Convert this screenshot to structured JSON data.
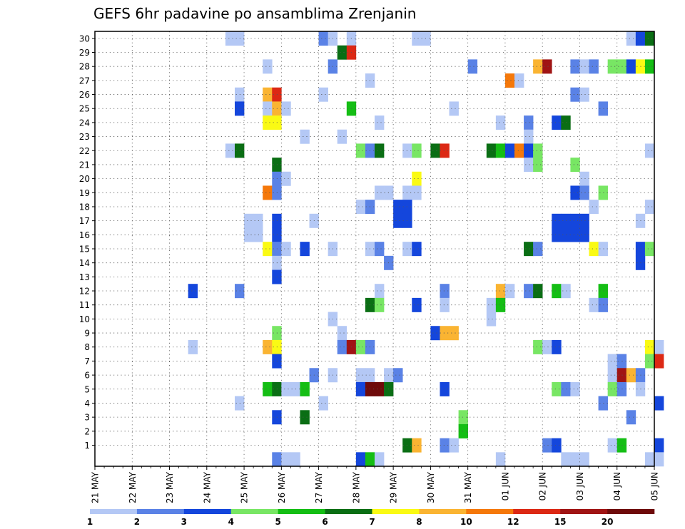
{
  "chart_data": {
    "type": "heatmap",
    "title": "GEFS 6hr padavine po ansamblima Zrenjanin",
    "xlabel": "",
    "ylabel": "",
    "x_start": "21 MAY",
    "x_end": "05 JUN",
    "x_tick_labels": [
      "21 MAY",
      "22 MAY",
      "23 MAY",
      "24 MAY",
      "25 MAY",
      "26 MAY",
      "27 MAY",
      "28 MAY",
      "29 MAY",
      "30 MAY",
      "31 MAY",
      "01 JUN",
      "02 JUN",
      "03 JUN",
      "04 JUN",
      "05 JUN"
    ],
    "y_tick_labels": [
      1,
      2,
      3,
      4,
      5,
      6,
      7,
      8,
      9,
      10,
      11,
      12,
      13,
      14,
      15,
      16,
      17,
      18,
      19,
      20,
      21,
      22,
      23,
      24,
      25,
      26,
      27,
      28,
      29,
      30
    ],
    "steps_per_day": 4,
    "grid": true,
    "colorbar": {
      "labels": [
        "1",
        "2",
        "3",
        "4",
        "5",
        "6",
        "7",
        "8",
        "10",
        "12",
        "15",
        "20"
      ],
      "colors": [
        "#b4c8f5",
        "#5a82e6",
        "#1446dc",
        "#78e664",
        "#14be14",
        "#0a6e14",
        "#fafa14",
        "#fab432",
        "#f5780a",
        "#dc2814",
        "#a01414",
        "#6e0a0a"
      ]
    },
    "cells": [
      [
        14,
        30,
        1
      ],
      [
        15,
        30,
        1
      ],
      [
        24,
        30,
        2
      ],
      [
        25,
        30,
        1
      ],
      [
        27,
        30,
        1
      ],
      [
        34,
        30,
        1
      ],
      [
        35,
        30,
        1
      ],
      [
        57,
        30,
        1
      ],
      [
        58,
        30,
        3
      ],
      [
        59,
        30,
        6
      ],
      [
        26,
        29,
        6
      ],
      [
        27,
        29,
        10
      ],
      [
        18,
        28,
        1
      ],
      [
        25,
        28,
        2
      ],
      [
        40,
        28,
        2
      ],
      [
        47,
        28,
        8
      ],
      [
        48,
        28,
        11
      ],
      [
        51,
        28,
        2
      ],
      [
        52,
        28,
        1
      ],
      [
        53,
        28,
        2
      ],
      [
        55,
        28,
        4
      ],
      [
        56,
        28,
        4
      ],
      [
        57,
        28,
        3
      ],
      [
        58,
        28,
        7
      ],
      [
        59,
        28,
        5
      ],
      [
        29,
        27,
        1
      ],
      [
        44,
        27,
        9
      ],
      [
        45,
        27,
        1
      ],
      [
        15,
        26,
        1
      ],
      [
        18,
        26,
        8
      ],
      [
        19,
        26,
        10
      ],
      [
        24,
        26,
        1
      ],
      [
        51,
        26,
        2
      ],
      [
        52,
        26,
        1
      ],
      [
        15,
        25,
        3
      ],
      [
        18,
        25,
        1
      ],
      [
        19,
        25,
        8
      ],
      [
        20,
        25,
        1
      ],
      [
        27,
        25,
        5
      ],
      [
        38,
        25,
        1
      ],
      [
        54,
        25,
        2
      ],
      [
        18,
        24,
        7
      ],
      [
        19,
        24,
        7
      ],
      [
        30,
        24,
        1
      ],
      [
        43,
        24,
        1
      ],
      [
        46,
        24,
        2
      ],
      [
        49,
        24,
        3
      ],
      [
        50,
        24,
        6
      ],
      [
        22,
        23,
        1
      ],
      [
        26,
        23,
        1
      ],
      [
        46,
        23,
        1
      ],
      [
        14,
        22,
        1
      ],
      [
        15,
        22,
        6
      ],
      [
        28,
        22,
        4
      ],
      [
        29,
        22,
        2
      ],
      [
        30,
        22,
        6
      ],
      [
        33,
        22,
        1
      ],
      [
        34,
        22,
        4
      ],
      [
        36,
        22,
        6
      ],
      [
        37,
        22,
        10
      ],
      [
        42,
        22,
        6
      ],
      [
        43,
        22,
        5
      ],
      [
        44,
        22,
        3
      ],
      [
        45,
        22,
        9
      ],
      [
        46,
        22,
        3
      ],
      [
        47,
        22,
        4
      ],
      [
        59,
        22,
        1
      ],
      [
        19,
        21,
        6
      ],
      [
        46,
        21,
        1
      ],
      [
        47,
        21,
        4
      ],
      [
        51,
        21,
        4
      ],
      [
        19,
        20,
        2
      ],
      [
        20,
        20,
        1
      ],
      [
        34,
        20,
        7
      ],
      [
        52,
        20,
        1
      ],
      [
        18,
        19,
        9
      ],
      [
        19,
        19,
        2
      ],
      [
        30,
        19,
        1
      ],
      [
        31,
        19,
        1
      ],
      [
        33,
        19,
        1
      ],
      [
        34,
        19,
        1
      ],
      [
        51,
        19,
        3
      ],
      [
        52,
        19,
        2
      ],
      [
        54,
        19,
        4
      ],
      [
        28,
        18,
        1
      ],
      [
        29,
        18,
        2
      ],
      [
        32,
        18,
        3
      ],
      [
        33,
        18,
        3
      ],
      [
        53,
        18,
        1
      ],
      [
        59,
        18,
        1
      ],
      [
        16,
        17,
        1
      ],
      [
        17,
        17,
        1
      ],
      [
        19,
        17,
        3
      ],
      [
        23,
        17,
        1
      ],
      [
        32,
        17,
        3
      ],
      [
        33,
        17,
        3
      ],
      [
        49,
        17,
        3
      ],
      [
        50,
        17,
        3
      ],
      [
        51,
        17,
        3
      ],
      [
        52,
        17,
        3
      ],
      [
        58,
        17,
        1
      ],
      [
        16,
        16,
        1
      ],
      [
        17,
        16,
        1
      ],
      [
        19,
        16,
        3
      ],
      [
        49,
        16,
        3
      ],
      [
        50,
        16,
        3
      ],
      [
        51,
        16,
        3
      ],
      [
        52,
        16,
        3
      ],
      [
        18,
        15,
        7
      ],
      [
        19,
        15,
        2
      ],
      [
        20,
        15,
        1
      ],
      [
        22,
        15,
        3
      ],
      [
        25,
        15,
        1
      ],
      [
        29,
        15,
        1
      ],
      [
        30,
        15,
        2
      ],
      [
        33,
        15,
        1
      ],
      [
        34,
        15,
        3
      ],
      [
        46,
        15,
        6
      ],
      [
        47,
        15,
        2
      ],
      [
        53,
        15,
        7
      ],
      [
        54,
        15,
        1
      ],
      [
        58,
        15,
        3
      ],
      [
        59,
        15,
        4
      ],
      [
        19,
        14,
        1
      ],
      [
        31,
        14,
        2
      ],
      [
        58,
        14,
        3
      ],
      [
        19,
        13,
        3
      ],
      [
        10,
        12,
        3
      ],
      [
        15,
        12,
        2
      ],
      [
        30,
        12,
        1
      ],
      [
        37,
        12,
        2
      ],
      [
        43,
        12,
        8
      ],
      [
        44,
        12,
        1
      ],
      [
        46,
        12,
        2
      ],
      [
        47,
        12,
        6
      ],
      [
        49,
        12,
        5
      ],
      [
        50,
        12,
        1
      ],
      [
        54,
        12,
        5
      ],
      [
        29,
        11,
        6
      ],
      [
        30,
        11,
        4
      ],
      [
        34,
        11,
        3
      ],
      [
        37,
        11,
        1
      ],
      [
        42,
        11,
        1
      ],
      [
        43,
        11,
        5
      ],
      [
        53,
        11,
        1
      ],
      [
        54,
        11,
        2
      ],
      [
        25,
        10,
        1
      ],
      [
        42,
        10,
        1
      ],
      [
        19,
        9,
        4
      ],
      [
        26,
        9,
        1
      ],
      [
        36,
        9,
        3
      ],
      [
        37,
        9,
        8
      ],
      [
        38,
        9,
        8
      ],
      [
        10,
        8,
        1
      ],
      [
        18,
        8,
        8
      ],
      [
        19,
        8,
        7
      ],
      [
        26,
        8,
        2
      ],
      [
        27,
        8,
        11
      ],
      [
        28,
        8,
        4
      ],
      [
        29,
        8,
        2
      ],
      [
        47,
        8,
        4
      ],
      [
        48,
        8,
        1
      ],
      [
        49,
        8,
        3
      ],
      [
        59,
        8,
        7
      ],
      [
        60,
        8,
        1
      ],
      [
        19,
        7,
        3
      ],
      [
        55,
        7,
        1
      ],
      [
        56,
        7,
        2
      ],
      [
        59,
        7,
        4
      ],
      [
        60,
        7,
        10
      ],
      [
        23,
        6,
        2
      ],
      [
        25,
        6,
        1
      ],
      [
        28,
        6,
        1
      ],
      [
        29,
        6,
        1
      ],
      [
        31,
        6,
        1
      ],
      [
        32,
        6,
        2
      ],
      [
        55,
        6,
        1
      ],
      [
        56,
        6,
        11
      ],
      [
        57,
        6,
        8
      ],
      [
        58,
        6,
        2
      ],
      [
        18,
        5,
        5
      ],
      [
        19,
        5,
        6
      ],
      [
        20,
        5,
        1
      ],
      [
        21,
        5,
        1
      ],
      [
        22,
        5,
        5
      ],
      [
        28,
        5,
        3
      ],
      [
        29,
        5,
        12
      ],
      [
        30,
        5,
        12
      ],
      [
        31,
        5,
        6
      ],
      [
        37,
        5,
        3
      ],
      [
        49,
        5,
        4
      ],
      [
        50,
        5,
        2
      ],
      [
        51,
        5,
        1
      ],
      [
        55,
        5,
        4
      ],
      [
        56,
        5,
        2
      ],
      [
        58,
        5,
        1
      ],
      [
        15,
        4,
        1
      ],
      [
        24,
        4,
        1
      ],
      [
        54,
        4,
        2
      ],
      [
        60,
        4,
        3
      ],
      [
        19,
        3,
        3
      ],
      [
        22,
        3,
        6
      ],
      [
        39,
        3,
        4
      ],
      [
        57,
        3,
        2
      ],
      [
        39,
        2,
        5
      ],
      [
        33,
        1,
        6
      ],
      [
        34,
        1,
        8
      ],
      [
        37,
        1,
        2
      ],
      [
        38,
        1,
        1
      ],
      [
        48,
        1,
        2
      ],
      [
        49,
        1,
        3
      ],
      [
        55,
        1,
        1
      ],
      [
        56,
        1,
        5
      ],
      [
        60,
        1,
        3
      ],
      [
        19,
        0,
        2
      ],
      [
        20,
        0,
        1
      ],
      [
        21,
        0,
        1
      ],
      [
        28,
        0,
        3
      ],
      [
        29,
        0,
        5
      ],
      [
        30,
        0,
        1
      ],
      [
        43,
        0,
        1
      ],
      [
        50,
        0,
        1
      ],
      [
        51,
        0,
        1
      ],
      [
        52,
        0,
        1
      ],
      [
        59,
        0,
        1
      ],
      [
        60,
        0,
        1
      ]
    ]
  }
}
